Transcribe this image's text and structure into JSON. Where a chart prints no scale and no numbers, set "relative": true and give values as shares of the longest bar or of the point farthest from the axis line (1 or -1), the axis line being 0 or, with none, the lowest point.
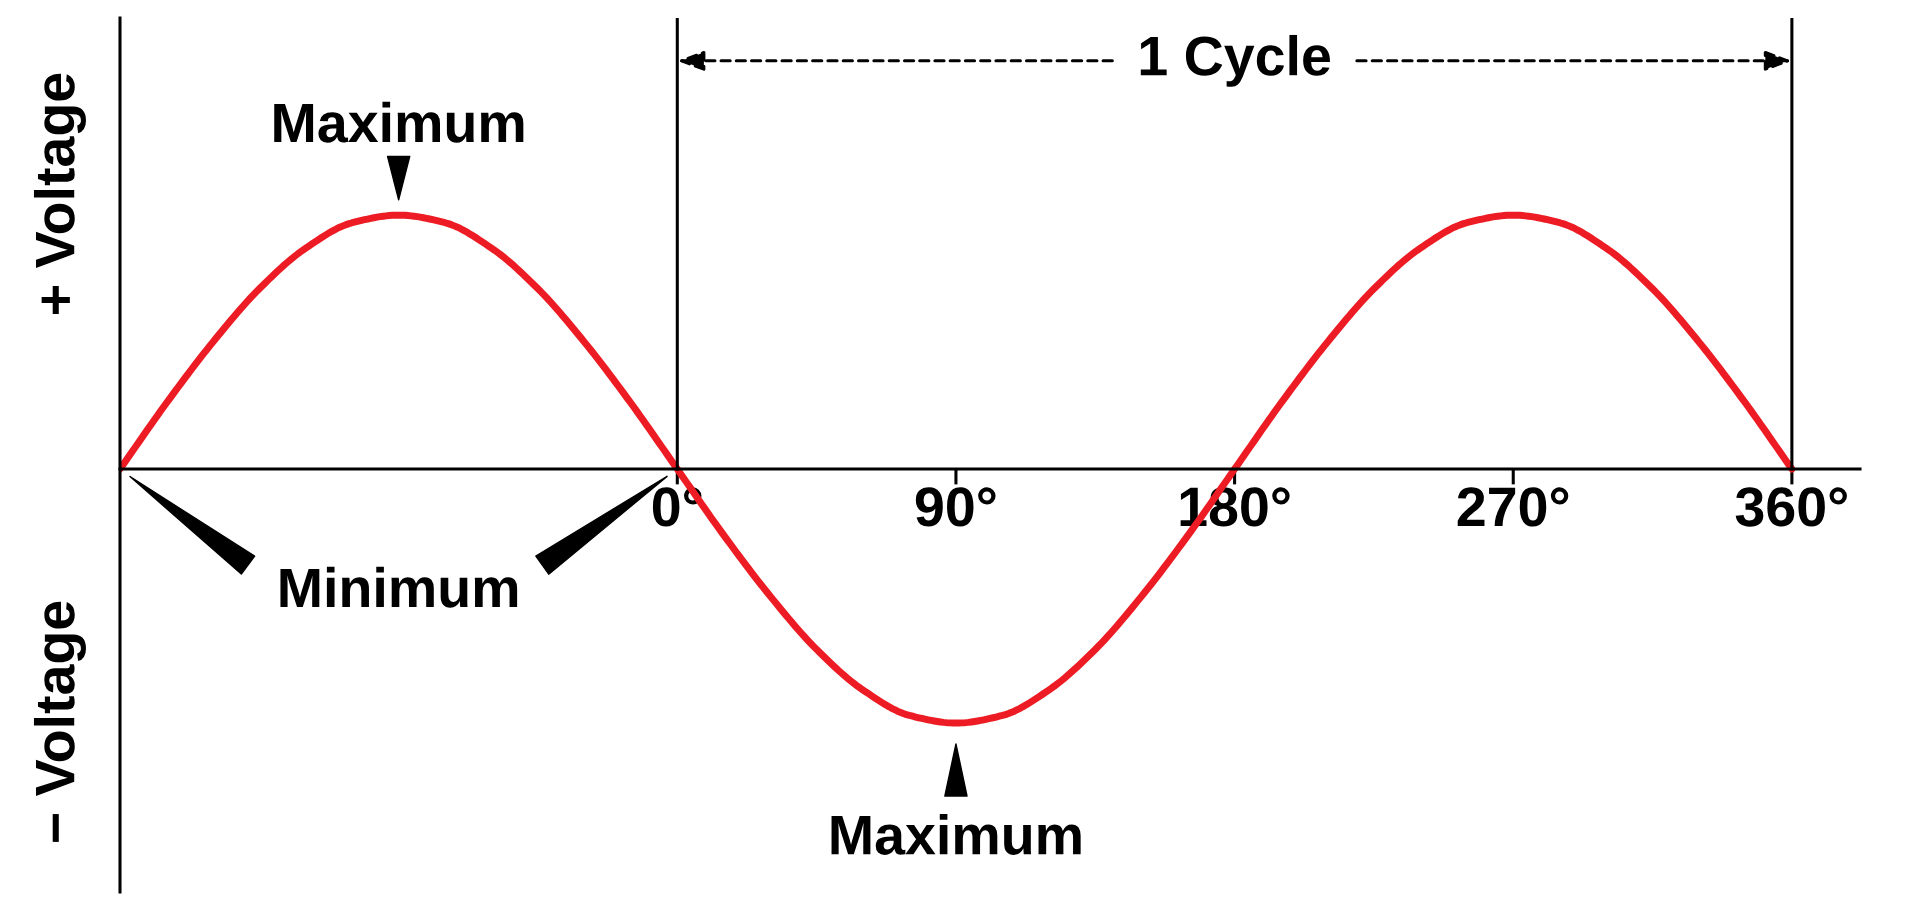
{
  "chart_data": {
    "type": "line",
    "relative": true,
    "ylabel": "+ Voltage",
    "x": [
      -180,
      -165,
      -150,
      -135,
      -120,
      -105,
      -90,
      -75,
      -60,
      -45,
      -30,
      -15,
      0,
      15,
      30,
      45,
      60,
      75,
      90,
      105,
      120,
      135,
      150,
      165,
      180,
      195,
      210,
      225,
      240,
      255,
      270,
      285,
      300,
      315,
      330,
      345,
      360
    ],
    "series": [
      {
        "color": "#ed1c24",
        "values": [
          0,
          0.26,
          0.5,
          0.71,
          0.87,
          0.97,
          1,
          0.97,
          0.87,
          0.71,
          0.5,
          0.26,
          0,
          -0.26,
          -0.5,
          -0.71,
          -0.87,
          -0.97,
          -1,
          -0.97,
          -0.87,
          -0.71,
          -0.5,
          -0.26,
          0,
          0.26,
          0.5,
          0.71,
          0.87,
          0.97,
          1,
          0.97,
          0.87,
          0.71,
          0.5,
          0.26,
          0
        ]
      }
    ],
    "xlim": [
      -180,
      382
    ],
    "xticks": [
      {
        "value": 0,
        "label": "0°"
      },
      {
        "value": 90,
        "label": "90°"
      },
      {
        "value": 180,
        "label": "180°"
      },
      {
        "value": 270,
        "label": "270°"
      },
      {
        "value": 360,
        "label": "360°"
      }
    ],
    "tick_labels": "x",
    "ref_lines": [
      {
        "axis": "x",
        "value": 0,
        "color": "#000000"
      },
      {
        "axis": "x",
        "value": 360,
        "color": "#000000"
      }
    ],
    "annotations": [
      {
        "text": "Maximum",
        "x": -90,
        "y": 1
      },
      {
        "text": "Maximum",
        "x": 90,
        "y": -1
      },
      "Minimum",
      "1 Cycle",
      "− Voltage"
    ]
  }
}
